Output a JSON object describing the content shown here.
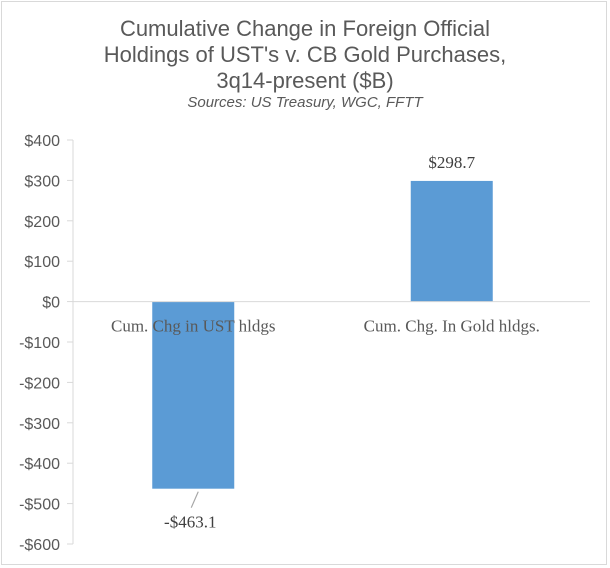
{
  "chart_data": {
    "type": "bar",
    "title_lines": [
      "Cumulative Change in Foreign Official",
      "Holdings of UST's v. CB Gold Purchases,",
      "3q14-present ($B)"
    ],
    "subtitle": "Sources:  US Treasury, WGC, FFTT",
    "categories": [
      "Cum. Chg in UST hldgs",
      "Cum. Chg. In Gold hldgs."
    ],
    "values": [
      -463.1,
      298.7
    ],
    "data_labels": [
      "-$463.1",
      "$298.7"
    ],
    "ylim": [
      -600,
      400
    ],
    "ytick_values": [
      400,
      300,
      200,
      100,
      0,
      -100,
      -200,
      -300,
      -400,
      -500,
      -600
    ],
    "ytick_labels": [
      "$400",
      "$300",
      "$200",
      "$100",
      "$0",
      "-$100",
      "-$200",
      "-$300",
      "-$400",
      "-$500",
      "-$600"
    ],
    "xlabel": "",
    "ylabel": "",
    "grid": false,
    "legend": "none",
    "bar_color": "#5b9bd5",
    "axis_color": "#d9d9d9"
  }
}
